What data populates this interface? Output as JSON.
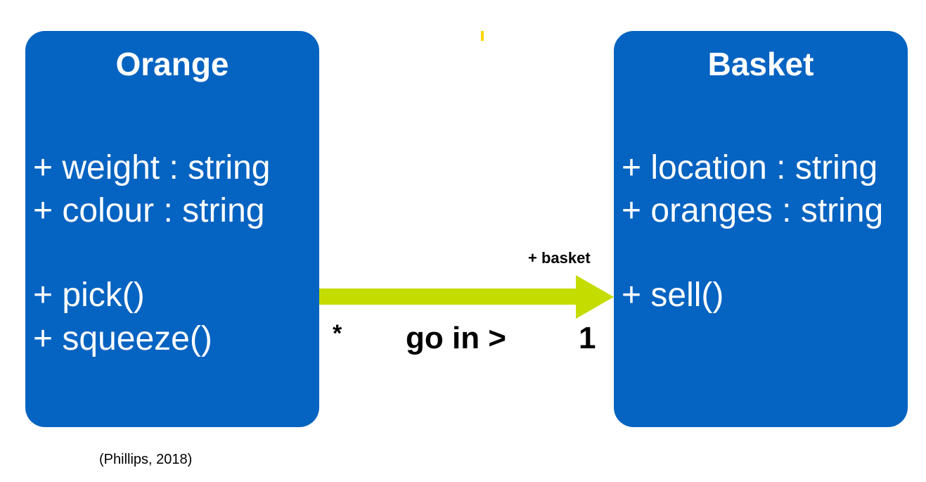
{
  "classes": {
    "orange": {
      "title": "Orange",
      "attributes": [
        "+ weight : string",
        "+ colour : string"
      ],
      "methods": [
        "+ pick()",
        "+ squeeze()"
      ]
    },
    "basket": {
      "title": "Basket",
      "attributes": [
        "+ location : string",
        "+ oranges : string"
      ],
      "methods": [
        "+ sell()"
      ]
    }
  },
  "association": {
    "role": "+ basket",
    "source_multiplicity": "*",
    "label": "go in >",
    "target_multiplicity": "1"
  },
  "citation": "(Phillips, 2018)",
  "colors": {
    "class_fill": "#0563c1",
    "class_text": "#ffffff",
    "arrow": "#c5dc00",
    "marker": "#ffd600"
  }
}
